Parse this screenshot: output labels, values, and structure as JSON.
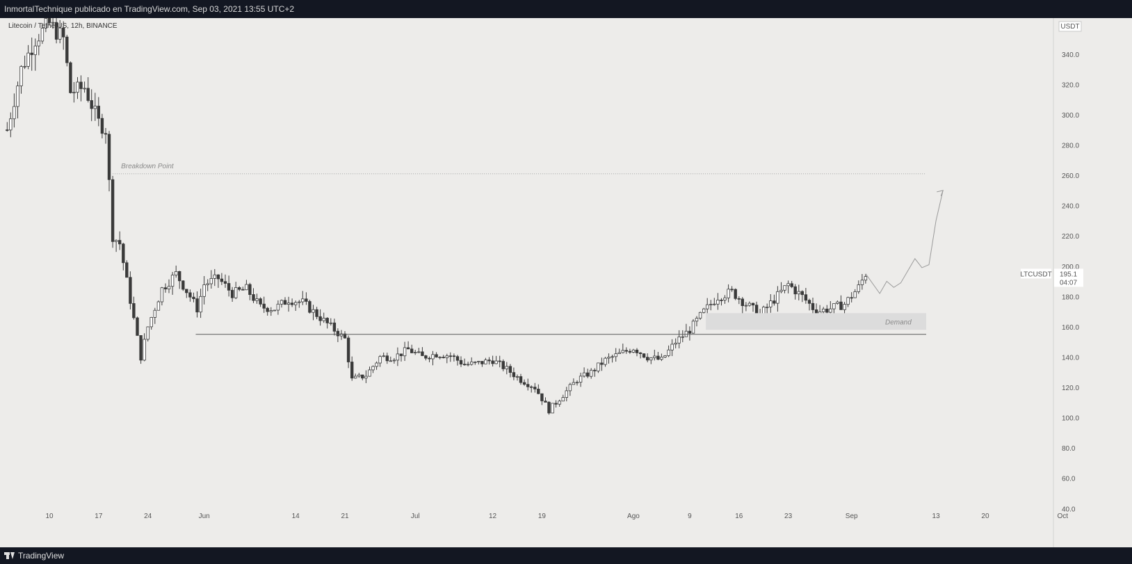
{
  "header": {
    "published_text": "InmortalTechnique publicado en TradingView.com, Sep 03, 2021 13:55 UTC+2"
  },
  "footer": {
    "logo_text": "TradingView"
  },
  "chart_data": {
    "type": "candlestick",
    "symbol_label": "Litecoin / TetherUS, 12h, BINANCE",
    "ticker": "LTCUSDT",
    "currency": "USDT",
    "last_price": "195.1",
    "countdown": "04:07",
    "y_axis": {
      "ylim": [
        36,
        360
      ],
      "ticks": [
        "340.0",
        "320.0",
        "300.0",
        "280.0",
        "260.0",
        "240.0",
        "220.0",
        "200.0",
        "180.0",
        "160.0",
        "140.0",
        "120.0",
        "100.0",
        "80.0",
        "60.0",
        "40.0"
      ]
    },
    "x_axis": {
      "ticks": [
        "10",
        "17",
        "24",
        "Jun",
        "14",
        "21",
        "Jul",
        "12",
        "19",
        "Ago",
        "9",
        "16",
        "23",
        "Sep",
        "13",
        "20",
        "Oct"
      ]
    },
    "annotations": {
      "breakdown_label": "Breakdown Point",
      "breakdown_level": 261,
      "support_level": 155,
      "demand_label": "Demand",
      "demand_zone": [
        158,
        169
      ]
    },
    "price_path": [
      [
        "May 04",
        290
      ],
      [
        "May 06",
        330
      ],
      [
        "May 08",
        350
      ],
      [
        "May 10",
        360
      ],
      [
        "May 12",
        350
      ],
      [
        "May 13",
        315
      ],
      [
        "May 15",
        318
      ],
      [
        "May 17",
        295
      ],
      [
        "May 18",
        290
      ],
      [
        "May 19",
        220
      ],
      [
        "May 20",
        215
      ],
      [
        "May 21",
        190
      ],
      [
        "May 23",
        140
      ],
      [
        "May 24",
        160
      ],
      [
        "May 26",
        185
      ],
      [
        "May 28",
        195
      ],
      [
        "May 30",
        180
      ],
      [
        "May 31",
        172
      ],
      [
        "Jun 01",
        188
      ],
      [
        "Jun 03",
        192
      ],
      [
        "Jun 05",
        182
      ],
      [
        "Jun 07",
        185
      ],
      [
        "Jun 09",
        173
      ],
      [
        "Jun 11",
        172
      ],
      [
        "Jun 13",
        178
      ],
      [
        "Jun 15",
        176
      ],
      [
        "Jun 17",
        168
      ],
      [
        "Jun 19",
        160
      ],
      [
        "Jun 21",
        152
      ],
      [
        "Jun 22",
        125
      ],
      [
        "Jun 24",
        128
      ],
      [
        "Jun 26",
        140
      ],
      [
        "Jun 28",
        140
      ],
      [
        "Jun 30",
        145
      ],
      [
        "Jul 02",
        140
      ],
      [
        "Jul 04",
        142
      ],
      [
        "Jul 06",
        141
      ],
      [
        "Jul 08",
        135
      ],
      [
        "Jul 10",
        136
      ],
      [
        "Jul 12",
        138
      ],
      [
        "Jul 14",
        132
      ],
      [
        "Jul 16",
        125
      ],
      [
        "Jul 18",
        120
      ],
      [
        "Jul 20",
        105
      ],
      [
        "Jul 22",
        115
      ],
      [
        "Jul 24",
        125
      ],
      [
        "Jul 26",
        130
      ],
      [
        "Jul 28",
        138
      ],
      [
        "Jul 30",
        142
      ],
      [
        "Aug 01",
        146
      ],
      [
        "Aug 03",
        140
      ],
      [
        "Aug 05",
        138
      ],
      [
        "Aug 07",
        150
      ],
      [
        "Aug 09",
        158
      ],
      [
        "Aug 11",
        170
      ],
      [
        "Aug 13",
        180
      ],
      [
        "Aug 15",
        183
      ],
      [
        "Aug 17",
        175
      ],
      [
        "Aug 19",
        168
      ],
      [
        "Aug 21",
        178
      ],
      [
        "Aug 23",
        188
      ],
      [
        "Aug 25",
        180
      ],
      [
        "Aug 27",
        170
      ],
      [
        "Aug 29",
        172
      ],
      [
        "Aug 31",
        175
      ],
      [
        "Sep 02",
        186
      ],
      [
        "Sep 03",
        195
      ]
    ],
    "projection": [
      [
        "Sep 03",
        195
      ],
      [
        "Sep 05",
        182
      ],
      [
        "Sep 06",
        190
      ],
      [
        "Sep 07",
        186
      ],
      [
        "Sep 08",
        189
      ],
      [
        "Sep 10",
        205
      ],
      [
        "Sep 11",
        199
      ],
      [
        "Sep 12",
        201
      ],
      [
        "Sep 13",
        230
      ],
      [
        "Sep 14",
        250
      ]
    ]
  }
}
